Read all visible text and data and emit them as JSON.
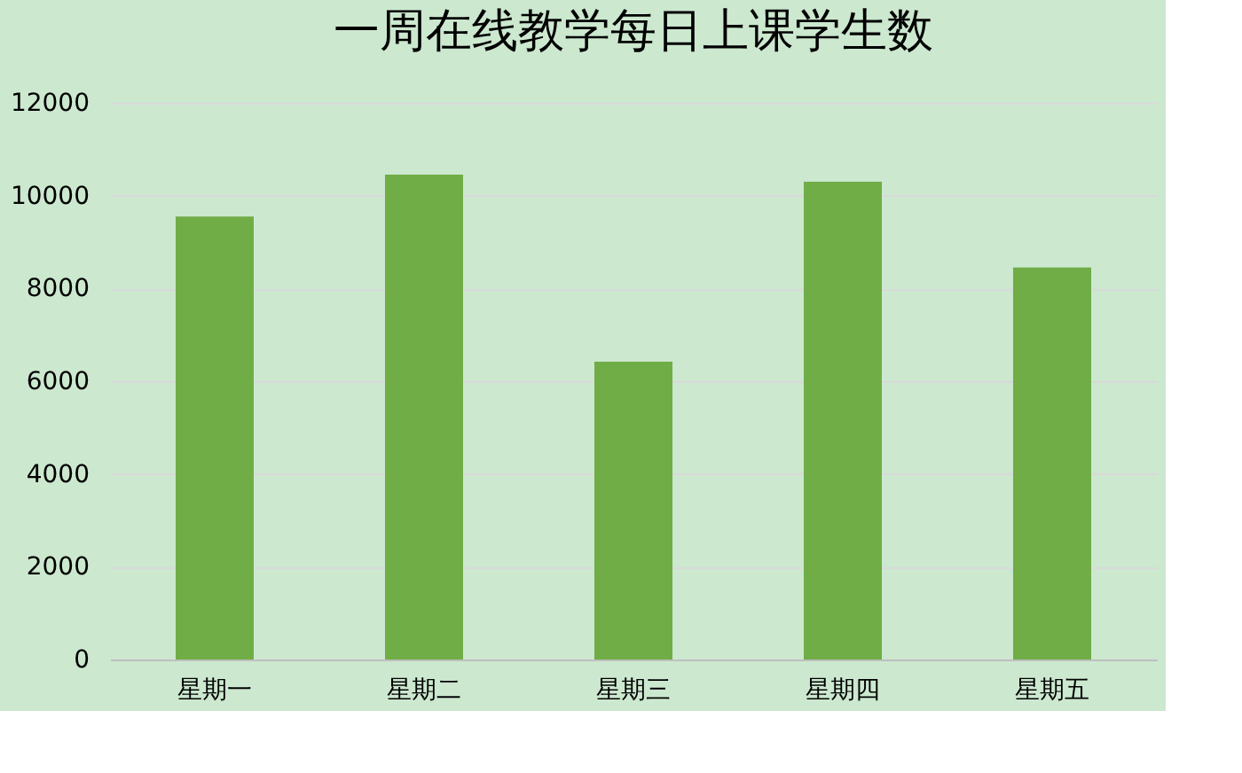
{
  "chart_data": {
    "type": "bar",
    "title": "一周在线教学每日上课学生数",
    "categories": [
      "星期一",
      "星期二",
      "星期三",
      "星期四",
      "星期五"
    ],
    "values": [
      9550,
      10450,
      6420,
      10300,
      8450
    ],
    "color": "#70ad47",
    "ylim": [
      0,
      12000
    ],
    "yticks": [
      0,
      2000,
      4000,
      6000,
      8000,
      10000,
      12000
    ],
    "grid": "y"
  }
}
